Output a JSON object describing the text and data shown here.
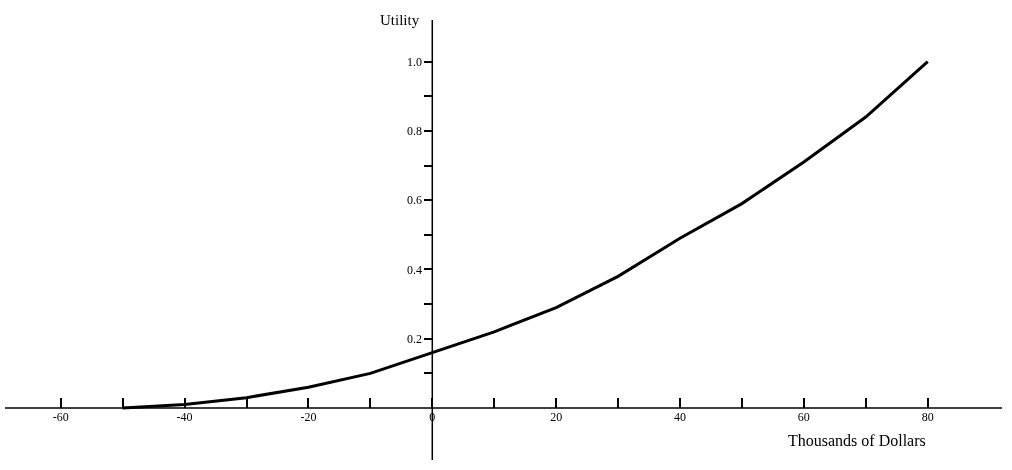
{
  "chart_data": {
    "type": "line",
    "xlabel": "Thousands of Dollars",
    "ylabel": "Utility",
    "x": [
      -50,
      -40,
      -30,
      -20,
      -10,
      0,
      10,
      20,
      30,
      40,
      50,
      60,
      70,
      80
    ],
    "series": [
      {
        "color": "#000000",
        "values": [
          0,
          0.01,
          0.03,
          0.06,
          0.1,
          0.16,
          0.22,
          0.29,
          0.38,
          0.49,
          0.59,
          0.71,
          0.84,
          1.0
        ]
      }
    ],
    "xlim": [
      -69,
      92
    ],
    "ylim": [
      -0.15,
      1.12
    ],
    "xticks": [
      -60,
      {
        "value": -50,
        "label": null
      },
      -40,
      {
        "value": -30,
        "label": null
      },
      -20,
      {
        "value": -10,
        "label": null
      },
      0,
      {
        "value": 10,
        "label": null
      },
      20,
      {
        "value": 30,
        "label": null
      },
      40,
      {
        "value": 50,
        "label": null
      },
      60,
      {
        "value": 70,
        "label": null
      },
      80
    ],
    "yticks": [
      {
        "value": 0.1,
        "label": null
      },
      0.2,
      {
        "value": 0.3,
        "label": null
      },
      0.4,
      {
        "value": 0.5,
        "label": null
      },
      0.6,
      {
        "value": 0.7,
        "label": null
      },
      0.8,
      {
        "value": 0.9,
        "label": null
      },
      {
        "value": 1.0,
        "label": "1.0"
      }
    ],
    "marker": "none",
    "line_style": "solid"
  }
}
